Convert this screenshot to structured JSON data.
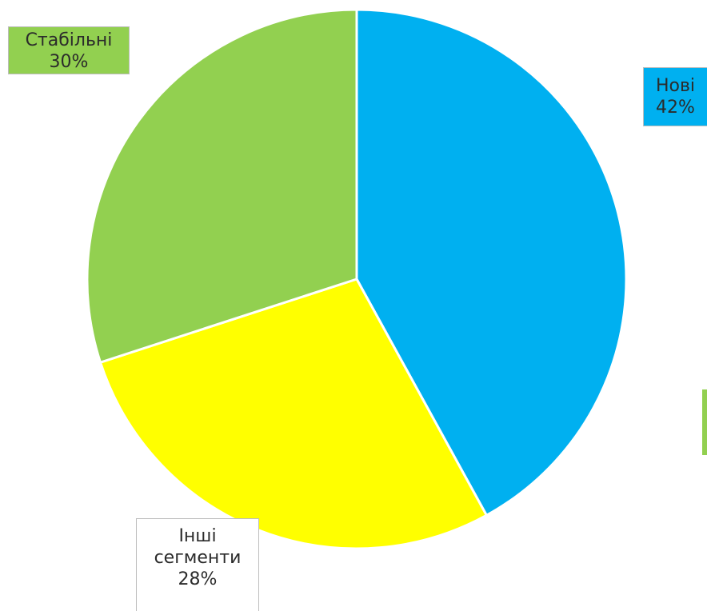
{
  "chart_data": {
    "type": "pie",
    "title": "",
    "slices": [
      {
        "label_lines": [
          "Нові"
        ],
        "value": 42,
        "value_label": "42%",
        "color": "#00b0f0",
        "label_color": "#00b0f0"
      },
      {
        "label_lines": [
          "Інші",
          "сегменти"
        ],
        "value": 28,
        "value_label": "28%",
        "color": "#ffff00",
        "label_color": "#ffffff"
      },
      {
        "label_lines": [
          "Стабільні"
        ],
        "value": 30,
        "value_label": "30%",
        "color": "#92d050",
        "label_color": "#92d050"
      }
    ],
    "start_angle_deg": 0,
    "direction": "clockwise",
    "legend": "none"
  }
}
